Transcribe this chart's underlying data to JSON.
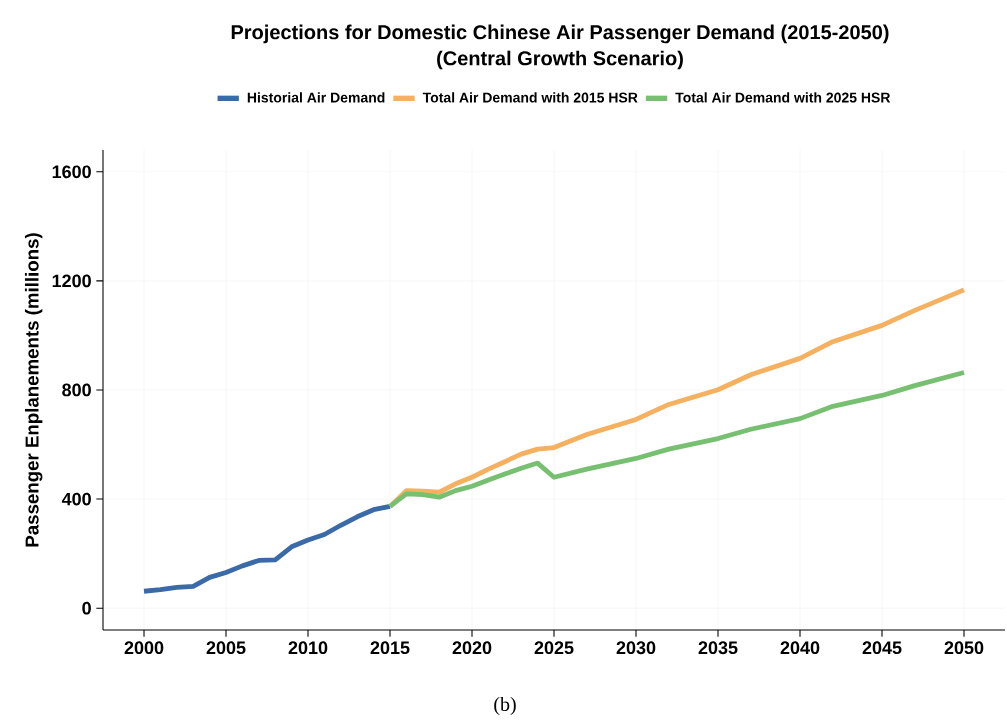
{
  "chart_data": {
    "type": "line",
    "title": "Projections for Domestic Chinese Air Passenger Demand (2015-2050)",
    "subtitle": "(Central Growth Scenario)",
    "ylabel": "Passenger Enplanements (millions)",
    "xlim": [
      1997.5,
      2052.5
    ],
    "ylim": [
      -80,
      1680
    ],
    "xticks": [
      2000,
      2005,
      2010,
      2015,
      2020,
      2025,
      2030,
      2035,
      2040,
      2045,
      2050
    ],
    "yticks": [
      0,
      400,
      800,
      1200,
      1600
    ],
    "grid": true,
    "legend": "top",
    "line_style": "solid",
    "marker": "none",
    "annotations": [
      "(b)"
    ],
    "series": [
      {
        "name": "Historial Air Demand",
        "color": "#3b6aa8",
        "x": [
          2000,
          2001,
          2002,
          2003,
          2004,
          2005,
          2006,
          2007,
          2008,
          2009,
          2010,
          2011,
          2012,
          2013,
          2014,
          2015
        ],
        "values": [
          62,
          68,
          76,
          80,
          113,
          131,
          155,
          175,
          177,
          225,
          250,
          270,
          304,
          335,
          361,
          373
        ]
      },
      {
        "name": "Total Air Demand with 2015 HSR",
        "color": "#f5b060",
        "x": [
          2015,
          2016,
          2017,
          2018,
          2019,
          2020,
          2021,
          2022,
          2023,
          2024,
          2025,
          2027,
          2030,
          2032,
          2035,
          2037,
          2040,
          2042,
          2045,
          2047,
          2050
        ],
        "values": [
          373,
          431,
          429,
          425,
          456,
          480,
          510,
          537,
          565,
          583,
          589,
          637,
          692,
          747,
          801,
          856,
          916,
          977,
          1037,
          1092,
          1167
        ]
      },
      {
        "name": "Total Air Demand with 2025 HSR",
        "color": "#78c071",
        "x": [
          2015,
          2016,
          2017,
          2018,
          2019,
          2020,
          2021,
          2022,
          2023,
          2024,
          2025,
          2027,
          2030,
          2032,
          2035,
          2037,
          2040,
          2042,
          2045,
          2047,
          2050
        ],
        "values": [
          373,
          419,
          416,
          407,
          431,
          447,
          470,
          492,
          513,
          532,
          480,
          510,
          549,
          583,
          622,
          656,
          695,
          740,
          780,
          816,
          864
        ]
      }
    ]
  }
}
